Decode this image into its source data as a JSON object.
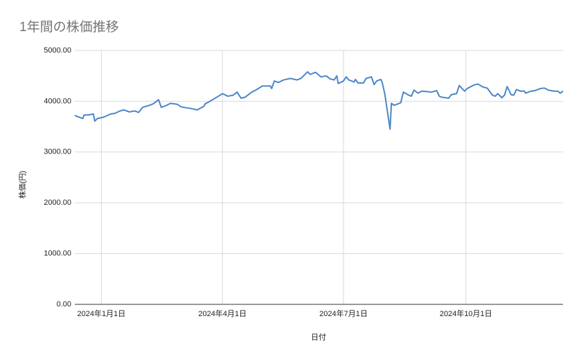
{
  "chart_data": {
    "type": "line",
    "title": "1年間の株価推移",
    "xlabel": "日付",
    "ylabel": "株価(円)",
    "color": "#4a86c8",
    "grid": true,
    "x": [
      "2023-12-12",
      "2023-12-15",
      "2023-12-18",
      "2023-12-19",
      "2023-12-22",
      "2023-12-26",
      "2023-12-27",
      "2023-12-29",
      "2024-01-03",
      "2024-01-08",
      "2024-01-11",
      "2024-01-15",
      "2024-01-18",
      "2024-01-22",
      "2024-01-26",
      "2024-01-29",
      "2024-02-01",
      "2024-02-06",
      "2024-02-09",
      "2024-02-13",
      "2024-02-15",
      "2024-02-19",
      "2024-02-22",
      "2024-02-27",
      "2024-03-01",
      "2024-03-05",
      "2024-03-08",
      "2024-03-13",
      "2024-03-18",
      "2024-03-19",
      "2024-03-22",
      "2024-03-29",
      "2024-04-01",
      "2024-04-05",
      "2024-04-09",
      "2024-04-12",
      "2024-04-15",
      "2024-04-18",
      "2024-04-23",
      "2024-04-26",
      "2024-05-01",
      "2024-05-07",
      "2024-05-08",
      "2024-05-10",
      "2024-05-13",
      "2024-05-17",
      "2024-05-22",
      "2024-05-27",
      "2024-05-30",
      "2024-06-04",
      "2024-06-06",
      "2024-06-10",
      "2024-06-14",
      "2024-06-18",
      "2024-06-21",
      "2024-06-24",
      "2024-06-26",
      "2024-06-27",
      "2024-07-01",
      "2024-07-03",
      "2024-07-05",
      "2024-07-09",
      "2024-07-10",
      "2024-07-12",
      "2024-07-16",
      "2024-07-18",
      "2024-07-22",
      "2024-07-24",
      "2024-07-26",
      "2024-07-29",
      "2024-07-30",
      "2024-08-01",
      "2024-08-05",
      "2024-08-06",
      "2024-08-08",
      "2024-08-13",
      "2024-08-15",
      "2024-08-19",
      "2024-08-21",
      "2024-08-23",
      "2024-08-26",
      "2024-08-29",
      "2024-09-02",
      "2024-09-05",
      "2024-09-09",
      "2024-09-11",
      "2024-09-13",
      "2024-09-18",
      "2024-09-20",
      "2024-09-24",
      "2024-09-26",
      "2024-09-30",
      "2024-10-02",
      "2024-10-07",
      "2024-10-10",
      "2024-10-14",
      "2024-10-17",
      "2024-10-21",
      "2024-10-23",
      "2024-10-25",
      "2024-10-28",
      "2024-10-30",
      "2024-11-01",
      "2024-11-04",
      "2024-11-06",
      "2024-11-08",
      "2024-11-11",
      "2024-11-14",
      "2024-11-15",
      "2024-11-19",
      "2024-11-22",
      "2024-11-26",
      "2024-11-29",
      "2024-12-02",
      "2024-12-06",
      "2024-12-09",
      "2024-12-11",
      "2024-12-13"
    ],
    "values": [
      3720,
      3690,
      3660,
      3730,
      3730,
      3750,
      3610,
      3660,
      3690,
      3750,
      3760,
      3810,
      3830,
      3790,
      3810,
      3780,
      3880,
      3920,
      3950,
      4030,
      3880,
      3920,
      3960,
      3940,
      3890,
      3870,
      3860,
      3830,
      3900,
      3950,
      3990,
      4100,
      4150,
      4100,
      4120,
      4180,
      4060,
      4080,
      4180,
      4220,
      4300,
      4300,
      4250,
      4400,
      4370,
      4420,
      4450,
      4420,
      4450,
      4580,
      4530,
      4570,
      4480,
      4500,
      4440,
      4420,
      4500,
      4350,
      4400,
      4480,
      4420,
      4380,
      4430,
      4360,
      4360,
      4450,
      4480,
      4330,
      4400,
      4430,
      4380,
      4150,
      3450,
      3960,
      3920,
      3970,
      4180,
      4120,
      4100,
      4220,
      4160,
      4200,
      4190,
      4180,
      4210,
      4100,
      4080,
      4060,
      4130,
      4150,
      4310,
      4200,
      4250,
      4320,
      4340,
      4280,
      4260,
      4120,
      4100,
      4150,
      4070,
      4120,
      4290,
      4130,
      4120,
      4230,
      4200,
      4200,
      4160,
      4200,
      4210,
      4250,
      4260,
      4220,
      4200,
      4200,
      4160,
      4200
    ],
    "xlim": [
      "2023-12-12",
      "2024-12-13"
    ],
    "xticks": [
      {
        "value": "2024-01-01",
        "label": "2024年1月1日"
      },
      {
        "value": "2024-04-01",
        "label": "2024年4月1日"
      },
      {
        "value": "2024-07-01",
        "label": "2024年7月1日"
      },
      {
        "value": "2024-10-01",
        "label": "2024年10月1日"
      }
    ],
    "ylim": [
      0,
      5000
    ],
    "yticks": [
      {
        "value": 0,
        "label": "0.00"
      },
      {
        "value": 1000,
        "label": "1000.00"
      },
      {
        "value": 2000,
        "label": "2000.00"
      },
      {
        "value": 3000,
        "label": "3000.00"
      },
      {
        "value": 4000,
        "label": "4000.00"
      },
      {
        "value": 5000,
        "label": "5000.00"
      }
    ]
  }
}
